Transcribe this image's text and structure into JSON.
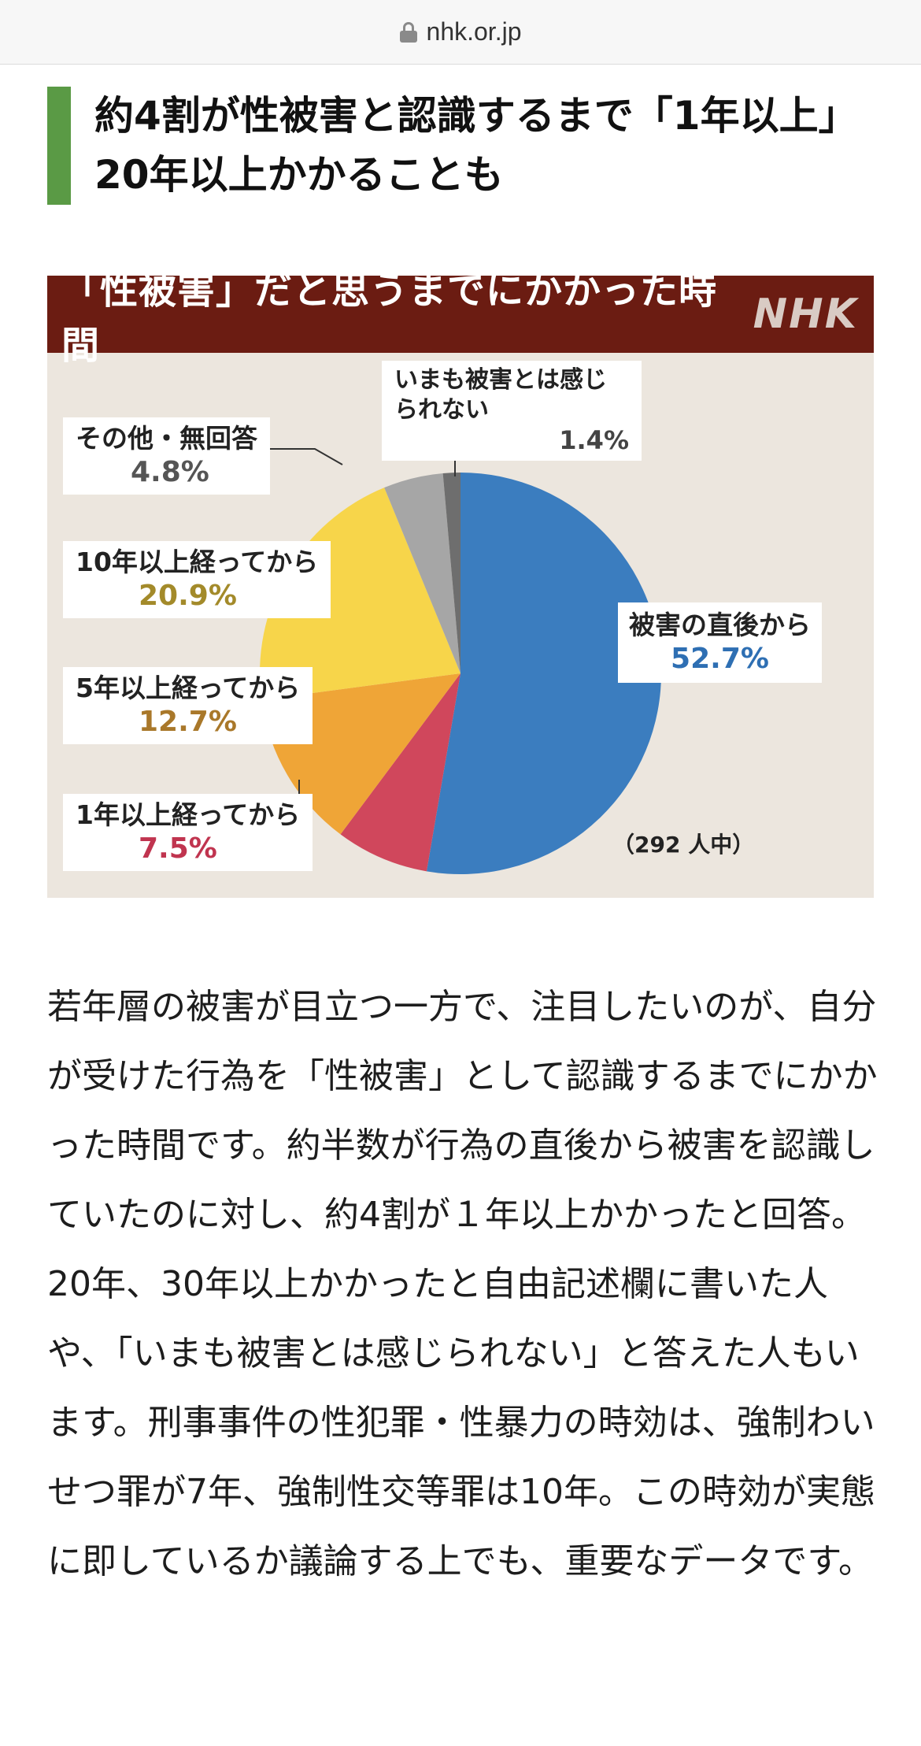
{
  "browser": {
    "url": "nhk.or.jp"
  },
  "headline": "約4割が性被害と認識するまで「1年以上」　20年以上かかることも",
  "chart": {
    "title": "「性被害」だと思うまでにかかった時間",
    "logo": "NHK",
    "note": "（292 人中）"
  },
  "chart_data": {
    "type": "pie",
    "title": "「性被害」だと思うまでにかかった時間",
    "unit": "%",
    "slices": [
      {
        "label": "被害の直後から",
        "value": 52.7,
        "display": "52.7%",
        "color": "#3b7dbf",
        "pct_color": "#2e6fb3"
      },
      {
        "label": "1年以上経ってから",
        "value": 7.5,
        "display": "7.5%",
        "color": "#d0475c",
        "pct_color": "#c0344f"
      },
      {
        "label": "5年以上経ってから",
        "value": 12.7,
        "display": "12.7%",
        "color": "#efa537",
        "pct_color": "#a9782a"
      },
      {
        "label": "10年以上経ってから",
        "value": 20.9,
        "display": "20.9%",
        "color": "#f7d54a",
        "pct_color": "#a38a2a"
      },
      {
        "label": "その他・無回答",
        "value": 4.8,
        "display": "4.8%",
        "color": "#a6a6a6",
        "pct_color": "#555555"
      },
      {
        "label": "いまも被害とは感じられない",
        "value": 1.4,
        "display": "1.4%",
        "color": "#6e6e6e",
        "pct_color": "#444444"
      }
    ],
    "note": "（292 人中）"
  },
  "article": {
    "paragraph": "若年層の被害が目立つ一方で、注目したいのが、自分が受けた行為を「性被害」として認識するまでにかかった時間です。約半数が行為の直後から被害を認識していたのに対し、約4割が１年以上かかったと回答。20年、30年以上かかったと自由記述欄に書いた人や、「いまも被害とは感じられない」と答えた人もいます。刑事事件の性犯罪・性暴力の時効は、強制わいせつ罪が7年、強制性交等罪は10年。この時効が実態に即しているか議論する上でも、重要なデータです。"
  }
}
